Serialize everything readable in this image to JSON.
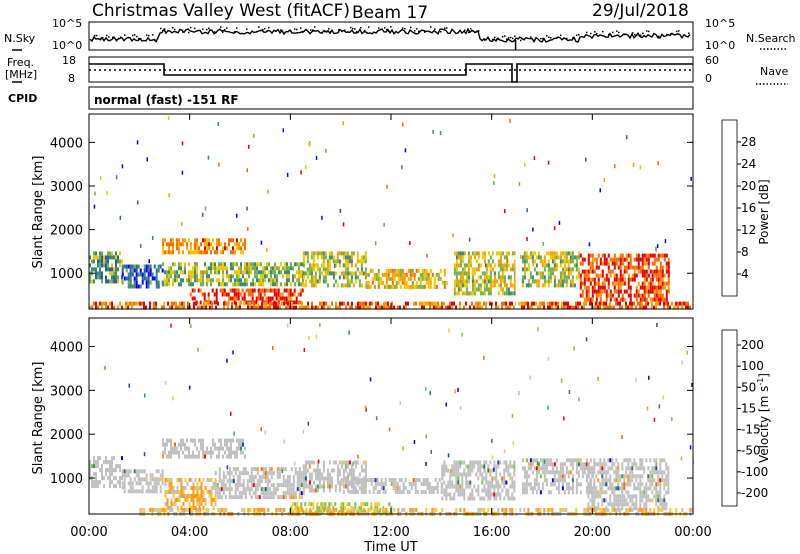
{
  "header": {
    "radar_title": "Christmas Valley West (fitACF)",
    "beam": "Beam 17",
    "date": "29/Jul/2018"
  },
  "noise_panel": {
    "left_label": "N.Sky",
    "left_ticks": [
      "10^5",
      "10^0"
    ],
    "right_ticks": [
      "10^5",
      "10^0"
    ],
    "right_label": "N.Search"
  },
  "freq_panel": {
    "left_label": "Freq.",
    "left_unit": "[MHz]",
    "left_ticks": [
      "18",
      "8"
    ],
    "right_ticks": [
      "60",
      "0"
    ],
    "right_label": "Nave"
  },
  "cpid": {
    "label": "CPID",
    "value": "normal (fast) -151 RF"
  },
  "colors": {
    "power": [
      "#0000ff",
      "#2b5fa8",
      "#3c8a78",
      "#6fb24e",
      "#f0c800",
      "#f5a000",
      "#ff6a00",
      "#e80000"
    ],
    "velocity": [
      "#ff0000",
      "#ff6400",
      "#ff9a14",
      "#ffc832",
      "#c8c8c8",
      "#c8c8c8",
      "#78c848",
      "#2ea04a",
      "#2d7a64",
      "#1e46a0",
      "#0000ff"
    ],
    "ground_scatter": "#c0c0c0"
  },
  "chart_data": [
    {
      "type": "heatmap",
      "name": "Power",
      "ylabel": "Slant Range [km]",
      "ylim": [
        180,
        4650
      ],
      "yticks": [
        1000,
        2000,
        3000,
        4000
      ],
      "xlim": [
        0,
        24
      ],
      "colorbar": {
        "label": "Power [dB]",
        "range": [
          0,
          32
        ],
        "ticks": [
          4,
          8,
          12,
          16,
          20,
          24,
          28
        ]
      },
      "patches": [
        {
          "t": [
            0.0,
            1.3
          ],
          "r": [
            800,
            1500
          ],
          "level": 0.35
        },
        {
          "t": [
            1.3,
            2.9
          ],
          "r": [
            700,
            1200
          ],
          "level": 0.2
        },
        {
          "t": [
            2.9,
            6.2
          ],
          "r": [
            1450,
            1800
          ],
          "level": 0.7
        },
        {
          "t": [
            2.9,
            8.5
          ],
          "r": [
            700,
            1250
          ],
          "level": 0.45
        },
        {
          "t": [
            4.0,
            8.5
          ],
          "r": [
            350,
            650
          ],
          "level": 0.9
        },
        {
          "t": [
            8.5,
            11.0
          ],
          "r": [
            700,
            1500
          ],
          "level": 0.5
        },
        {
          "t": [
            11.0,
            14.2
          ],
          "r": [
            700,
            1100
          ],
          "level": 0.6
        },
        {
          "t": [
            14.5,
            17.0
          ],
          "r": [
            500,
            1500
          ],
          "level": 0.55
        },
        {
          "t": [
            17.2,
            19.5
          ],
          "r": [
            700,
            1500
          ],
          "level": 0.5
        },
        {
          "t": [
            19.5,
            23.0
          ],
          "r": [
            350,
            1450
          ],
          "level": 0.88
        },
        {
          "t": [
            0.0,
            24.0
          ],
          "r": [
            180,
            350
          ],
          "level": 0.8
        }
      ]
    },
    {
      "type": "heatmap",
      "name": "Velocity",
      "ylabel": "Slant Range [km]",
      "ylim": [
        180,
        4650
      ],
      "yticks": [
        1000,
        2000,
        3000,
        4000
      ],
      "xlim": [
        0,
        24
      ],
      "xticks": [
        "00:00",
        "04:00",
        "08:00",
        "12:00",
        "16:00",
        "20:00",
        "00:00"
      ],
      "xlabel": "Time UT",
      "colorbar": {
        "label": "Velocity [m s",
        "label_sup": "-1",
        "label_end": "]",
        "ticks": [
          "200",
          "100",
          "50",
          "15",
          "-15",
          "-50",
          "-100",
          "-200"
        ]
      },
      "patches": [
        {
          "t": [
            0.0,
            1.3
          ],
          "r": [
            800,
            1500
          ],
          "kind": "ground"
        },
        {
          "t": [
            1.3,
            2.9
          ],
          "r": [
            700,
            1200
          ],
          "kind": "ground"
        },
        {
          "t": [
            2.9,
            6.2
          ],
          "r": [
            1450,
            1900
          ],
          "kind": "ground"
        },
        {
          "t": [
            3.0,
            5.0
          ],
          "r": [
            350,
            1000
          ],
          "kind": "orange"
        },
        {
          "t": [
            5.0,
            8.5
          ],
          "r": [
            600,
            1250
          ],
          "kind": "ground"
        },
        {
          "t": [
            8.5,
            11.0
          ],
          "r": [
            700,
            1400
          ],
          "kind": "ground"
        },
        {
          "t": [
            10.0,
            14.0
          ],
          "r": [
            700,
            1000
          ],
          "kind": "ground"
        },
        {
          "t": [
            14.0,
            17.0
          ],
          "r": [
            500,
            1400
          ],
          "kind": "ground"
        },
        {
          "t": [
            17.2,
            20.0
          ],
          "r": [
            700,
            1450
          ],
          "kind": "ground"
        },
        {
          "t": [
            19.8,
            23.0
          ],
          "r": [
            350,
            1450
          ],
          "kind": "ground"
        },
        {
          "t": [
            8.0,
            12.0
          ],
          "r": [
            180,
            450
          ],
          "kind": "green"
        },
        {
          "t": [
            2.0,
            24.0
          ],
          "r": [
            180,
            320
          ],
          "kind": "orange"
        }
      ]
    }
  ]
}
